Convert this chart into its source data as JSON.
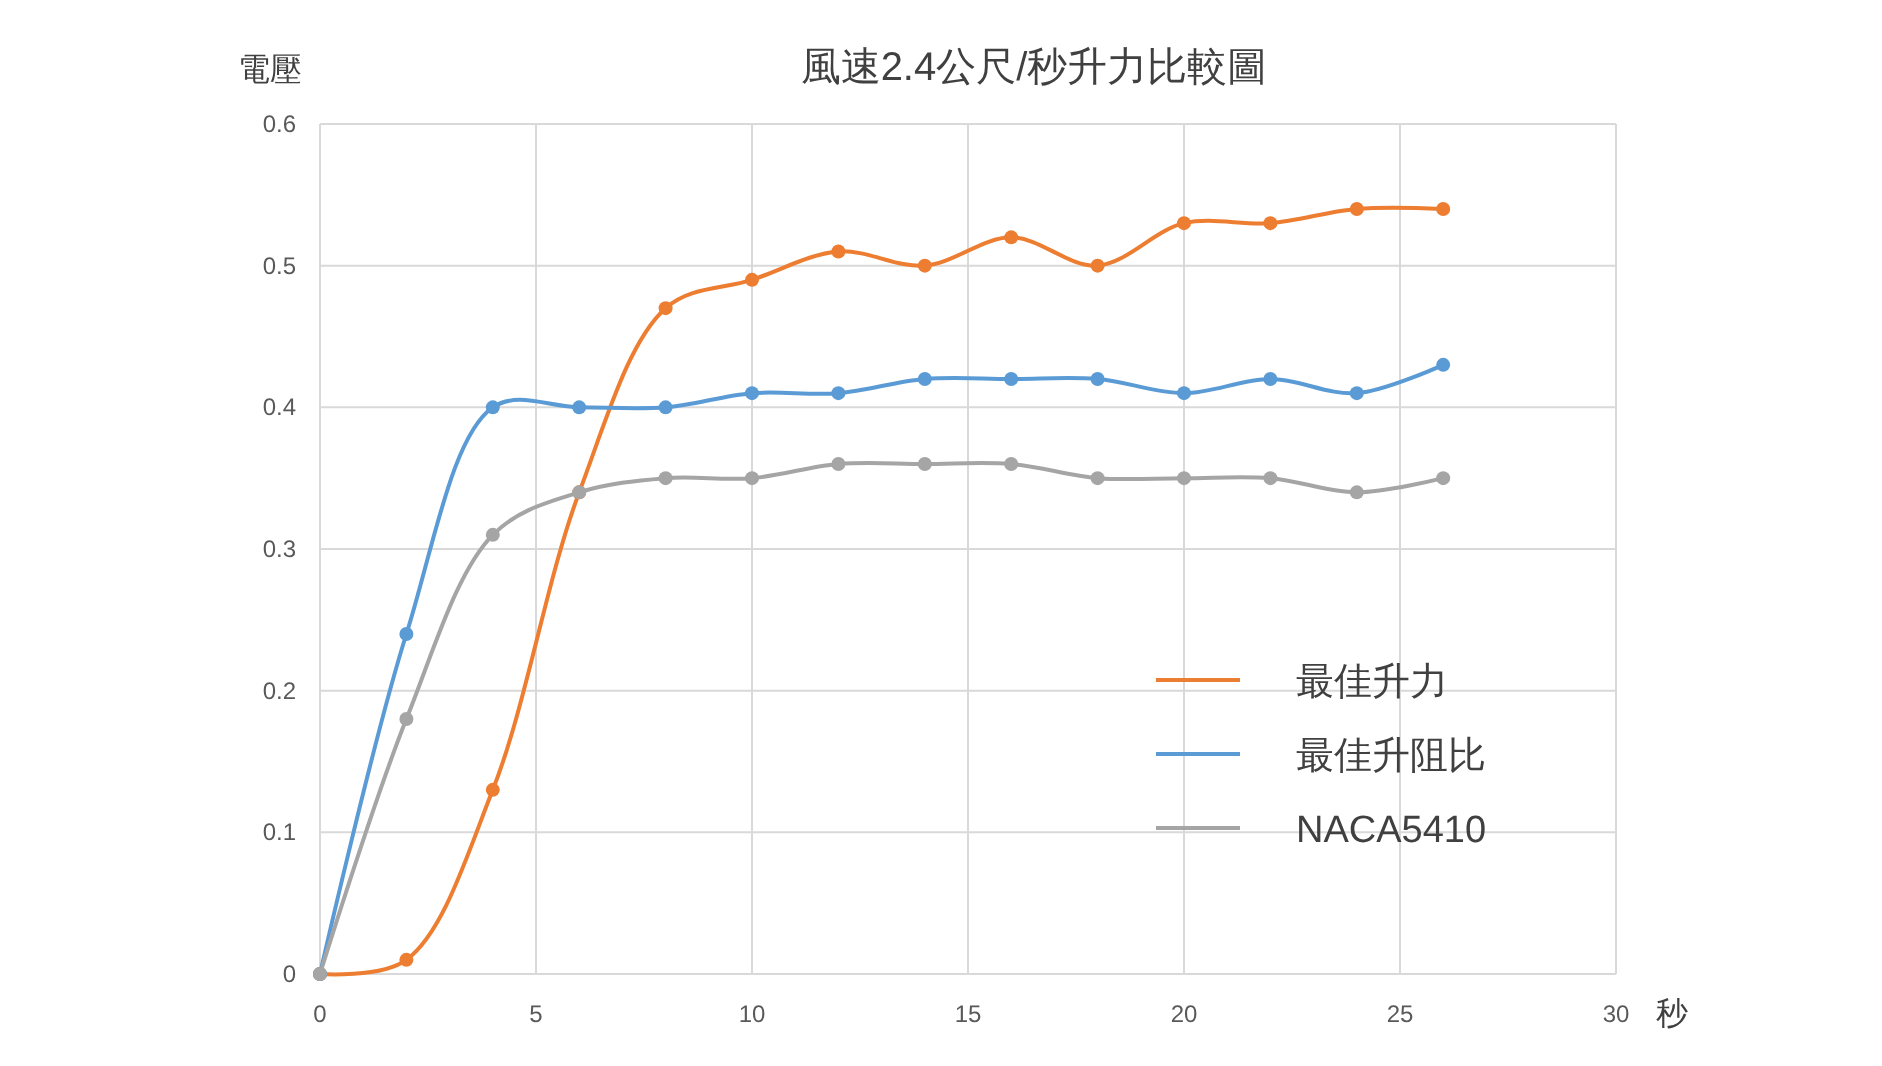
{
  "chart_data": {
    "type": "line",
    "title": "風速2.4公尺/秒升力比較圖",
    "xlabel": "秒",
    "ylabel": "電壓",
    "x": [
      0,
      2,
      4,
      6,
      8,
      10,
      12,
      14,
      16,
      18,
      20,
      22,
      24,
      26
    ],
    "series": [
      {
        "name": "最佳升力",
        "color": "#ed7d31",
        "values": [
          0,
          0.01,
          0.13,
          0.34,
          0.47,
          0.49,
          0.51,
          0.5,
          0.52,
          0.5,
          0.53,
          0.53,
          0.54,
          0.54
        ]
      },
      {
        "name": "最佳升阻比",
        "color": "#5b9bd5",
        "values": [
          0,
          0.24,
          0.4,
          0.4,
          0.4,
          0.41,
          0.41,
          0.42,
          0.42,
          0.42,
          0.41,
          0.42,
          0.41,
          0.43
        ]
      },
      {
        "name": "NACA5410",
        "color": "#a5a5a5",
        "values": [
          0,
          0.18,
          0.31,
          0.34,
          0.35,
          0.35,
          0.36,
          0.36,
          0.36,
          0.35,
          0.35,
          0.35,
          0.34,
          0.35
        ]
      }
    ],
    "xlim": [
      0,
      30
    ],
    "xticks": [
      0,
      5,
      10,
      15,
      20,
      25,
      30
    ],
    "ylim": [
      0,
      0.6
    ],
    "yticks": [
      0,
      0.1,
      0.2,
      0.3,
      0.4,
      0.5,
      0.6
    ],
    "grid": true,
    "legend": "bottom right",
    "marker": "circle",
    "line_style": "solid"
  }
}
